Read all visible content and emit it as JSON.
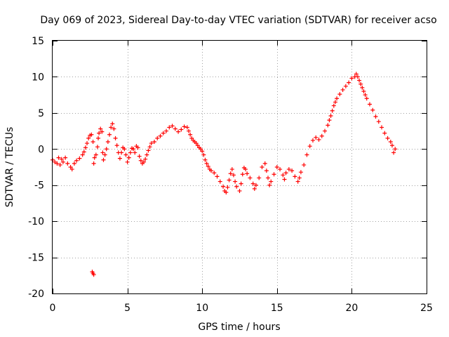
{
  "chart_data": {
    "type": "scatter",
    "title": "Day 069 of 2023, Sidereal Day-to-day VTEC variation (SDTVAR) for receiver acso",
    "xlabel": "GPS time / hours",
    "ylabel": "SDTVAR / TECUs",
    "xlim": [
      0,
      25
    ],
    "ylim": [
      -20,
      15
    ],
    "x_ticks": [
      0,
      5,
      10,
      15,
      20,
      25
    ],
    "y_ticks": [
      -20,
      -15,
      -10,
      -5,
      0,
      5,
      10,
      15
    ],
    "x_tick_labels": [
      "0",
      "5",
      "10",
      "15",
      "20",
      "25"
    ],
    "y_tick_labels": [
      "-20",
      "-15",
      "-10",
      "-5",
      "0",
      "5",
      "10",
      "15"
    ],
    "grid": true,
    "marker": "+",
    "series_color": "#ff0000",
    "series": [
      {
        "name": "SDTVAR",
        "points": [
          [
            0.0,
            -1.5
          ],
          [
            0.15,
            -1.8
          ],
          [
            0.3,
            -2.0
          ],
          [
            0.4,
            -1.2
          ],
          [
            0.5,
            -2.2
          ],
          [
            0.6,
            -1.4
          ],
          [
            0.7,
            -1.8
          ],
          [
            0.85,
            -1.2
          ],
          [
            1.0,
            -2.0
          ],
          [
            1.2,
            -2.5
          ],
          [
            1.3,
            -2.8
          ],
          [
            1.45,
            -2.0
          ],
          [
            1.6,
            -1.6
          ],
          [
            1.8,
            -1.3
          ],
          [
            2.0,
            -0.8
          ],
          [
            2.1,
            -0.4
          ],
          [
            2.2,
            0.2
          ],
          [
            2.3,
            0.8
          ],
          [
            2.4,
            1.5
          ],
          [
            2.5,
            1.9
          ],
          [
            2.6,
            2.0
          ],
          [
            2.7,
            1.0
          ],
          [
            2.75,
            -2.0
          ],
          [
            2.8,
            -1.2
          ],
          [
            2.9,
            -0.8
          ],
          [
            3.0,
            0.3
          ],
          [
            3.05,
            1.5
          ],
          [
            3.1,
            2.2
          ],
          [
            3.2,
            2.8
          ],
          [
            3.3,
            2.4
          ],
          [
            3.35,
            -0.5
          ],
          [
            3.4,
            -1.5
          ],
          [
            3.5,
            -0.8
          ],
          [
            3.6,
            0.0
          ],
          [
            3.7,
            1.0
          ],
          [
            3.8,
            2.0
          ],
          [
            3.9,
            3.0
          ],
          [
            4.0,
            3.5
          ],
          [
            4.1,
            2.8
          ],
          [
            4.2,
            1.5
          ],
          [
            4.3,
            0.5
          ],
          [
            4.4,
            -0.5
          ],
          [
            4.5,
            -1.3
          ],
          [
            4.6,
            -0.5
          ],
          [
            4.7,
            0.2
          ],
          [
            4.8,
            0.0
          ],
          [
            4.9,
            -0.8
          ],
          [
            5.0,
            -1.8
          ],
          [
            5.1,
            -1.2
          ],
          [
            5.2,
            -0.5
          ],
          [
            5.3,
            0.1
          ],
          [
            5.4,
            0.0
          ],
          [
            5.5,
            -0.5
          ],
          [
            5.6,
            0.4
          ],
          [
            5.7,
            0.2
          ],
          [
            5.8,
            -1.0
          ],
          [
            5.9,
            -1.6
          ],
          [
            6.0,
            -2.0
          ],
          [
            6.1,
            -1.8
          ],
          [
            6.2,
            -1.4
          ],
          [
            6.3,
            -0.8
          ],
          [
            6.4,
            -0.2
          ],
          [
            6.5,
            0.3
          ],
          [
            6.6,
            0.8
          ],
          [
            6.8,
            1.0
          ],
          [
            7.0,
            1.5
          ],
          [
            7.2,
            1.8
          ],
          [
            7.4,
            2.2
          ],
          [
            7.6,
            2.5
          ],
          [
            7.8,
            3.0
          ],
          [
            8.0,
            3.2
          ],
          [
            8.2,
            2.8
          ],
          [
            8.4,
            2.4
          ],
          [
            8.6,
            2.7
          ],
          [
            8.8,
            3.1
          ],
          [
            9.0,
            3.0
          ],
          [
            9.1,
            2.5
          ],
          [
            9.2,
            2.0
          ],
          [
            9.3,
            1.5
          ],
          [
            9.4,
            1.2
          ],
          [
            9.5,
            1.0
          ],
          [
            9.6,
            0.8
          ],
          [
            9.7,
            0.5
          ],
          [
            9.8,
            0.2
          ],
          [
            9.9,
            0.0
          ],
          [
            10.0,
            -0.3
          ],
          [
            10.1,
            -0.8
          ],
          [
            10.2,
            -1.5
          ],
          [
            10.3,
            -2.0
          ],
          [
            10.4,
            -2.4
          ],
          [
            10.5,
            -2.8
          ],
          [
            10.6,
            -3.0
          ],
          [
            10.8,
            -3.3
          ],
          [
            11.0,
            -3.8
          ],
          [
            11.2,
            -4.5
          ],
          [
            11.4,
            -5.2
          ],
          [
            11.5,
            -5.8
          ],
          [
            11.6,
            -6.0
          ],
          [
            11.7,
            -5.3
          ],
          [
            11.8,
            -4.3
          ],
          [
            11.9,
            -3.4
          ],
          [
            12.0,
            -2.8
          ],
          [
            12.1,
            -3.6
          ],
          [
            12.2,
            -4.5
          ],
          [
            12.3,
            -5.2
          ],
          [
            12.5,
            -5.8
          ],
          [
            12.6,
            -4.8
          ],
          [
            12.7,
            -3.5
          ],
          [
            12.8,
            -2.6
          ],
          [
            12.9,
            -2.8
          ],
          [
            13.0,
            -3.4
          ],
          [
            13.2,
            -4.0
          ],
          [
            13.4,
            -4.8
          ],
          [
            13.5,
            -5.5
          ],
          [
            13.6,
            -5.0
          ],
          [
            13.8,
            -4.0
          ],
          [
            14.0,
            -2.5
          ],
          [
            14.2,
            -2.0
          ],
          [
            14.3,
            -3.0
          ],
          [
            14.4,
            -4.0
          ],
          [
            14.5,
            -5.0
          ],
          [
            14.6,
            -4.5
          ],
          [
            14.8,
            -3.5
          ],
          [
            15.0,
            -2.5
          ],
          [
            15.2,
            -2.8
          ],
          [
            15.4,
            -3.6
          ],
          [
            15.5,
            -4.2
          ],
          [
            15.6,
            -3.3
          ],
          [
            15.8,
            -2.8
          ],
          [
            16.0,
            -3.0
          ],
          [
            16.2,
            -3.8
          ],
          [
            16.4,
            -4.5
          ],
          [
            16.5,
            -4.0
          ],
          [
            16.6,
            -3.2
          ],
          [
            16.8,
            -2.2
          ],
          [
            17.0,
            -0.8
          ],
          [
            17.2,
            0.4
          ],
          [
            17.4,
            1.2
          ],
          [
            17.6,
            1.6
          ],
          [
            17.8,
            1.3
          ],
          [
            18.0,
            1.8
          ],
          [
            18.2,
            2.5
          ],
          [
            18.4,
            3.3
          ],
          [
            18.5,
            4.0
          ],
          [
            18.6,
            4.6
          ],
          [
            18.7,
            5.3
          ],
          [
            18.8,
            6.0
          ],
          [
            18.9,
            6.5
          ],
          [
            19.0,
            7.0
          ],
          [
            19.2,
            7.6
          ],
          [
            19.4,
            8.2
          ],
          [
            19.6,
            8.7
          ],
          [
            19.8,
            9.2
          ],
          [
            20.0,
            9.8
          ],
          [
            20.2,
            10.0
          ],
          [
            20.3,
            10.4
          ],
          [
            20.4,
            10.0
          ],
          [
            20.5,
            9.5
          ],
          [
            20.6,
            9.0
          ],
          [
            20.7,
            8.5
          ],
          [
            20.8,
            8.0
          ],
          [
            20.9,
            7.5
          ],
          [
            21.0,
            7.0
          ],
          [
            21.2,
            6.2
          ],
          [
            21.4,
            5.4
          ],
          [
            21.6,
            4.5
          ],
          [
            21.8,
            3.8
          ],
          [
            22.0,
            3.0
          ],
          [
            22.2,
            2.2
          ],
          [
            22.4,
            1.5
          ],
          [
            22.6,
            1.0
          ],
          [
            22.7,
            0.5
          ],
          [
            22.8,
            -0.5
          ],
          [
            22.9,
            0.0
          ],
          [
            2.65,
            -17.0
          ],
          [
            2.7,
            -17.2
          ],
          [
            2.75,
            -17.4
          ]
        ]
      }
    ]
  }
}
